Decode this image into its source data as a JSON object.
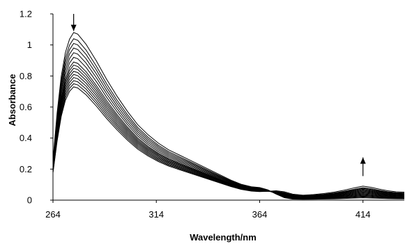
{
  "chart_data": {
    "type": "line",
    "title": "",
    "xlabel": "Wavelength/nm",
    "ylabel": "Absorbance",
    "xlim": [
      264,
      434
    ],
    "ylim": [
      0,
      1.2
    ],
    "xticks": [
      264,
      314,
      364,
      414
    ],
    "xtick_labels": [
      "264",
      "314",
      "364",
      "414"
    ],
    "yticks": [
      0,
      0.2,
      0.4,
      0.6,
      0.8,
      1.0,
      1.2
    ],
    "ytick_labels": [
      "0",
      "0.2",
      "0.4",
      "0.6",
      "0.8",
      "1",
      "1.2"
    ],
    "grid": false,
    "legend": false,
    "line_color": "#000000",
    "peak_values_at_274nm": [
      1.08,
      1.04,
      1.01,
      0.98,
      0.95,
      0.92,
      0.89,
      0.87,
      0.85,
      0.83,
      0.81,
      0.79,
      0.77,
      0.75,
      0.73
    ],
    "band_values_at_414nm": [
      0.015,
      0.02,
      0.025,
      0.03,
      0.035,
      0.04,
      0.045,
      0.05,
      0.055,
      0.06,
      0.065,
      0.07,
      0.075,
      0.08,
      0.09
    ],
    "template_x": [
      264,
      266,
      268,
      270,
      272,
      274,
      276,
      280,
      285,
      290,
      295,
      300,
      305,
      310,
      315,
      320,
      325,
      330,
      335,
      340,
      345,
      350,
      355,
      360,
      364,
      368,
      372,
      376,
      380,
      385,
      390,
      395,
      400,
      405,
      410,
      414,
      418,
      422,
      426,
      430,
      434
    ],
    "template_y": [
      0.24,
      0.52,
      0.74,
      0.88,
      0.96,
      1.0,
      0.99,
      0.93,
      0.83,
      0.72,
      0.62,
      0.53,
      0.45,
      0.39,
      0.34,
      0.3,
      0.27,
      0.24,
      0.21,
      0.18,
      0.15,
      0.12,
      0.095,
      0.08,
      0.075,
      0.07,
      0.06,
      0.045,
      0.03,
      0.025,
      0.028,
      0.033,
      0.04,
      0.05,
      0.062,
      0.07,
      0.064,
      0.055,
      0.047,
      0.042,
      0.04
    ],
    "annotations": [
      {
        "type": "arrow",
        "direction": "down",
        "x": 274,
        "from_y": 1.2,
        "to_y": 1.09
      },
      {
        "type": "arrow",
        "direction": "up",
        "x": 414,
        "from_y": 0.155,
        "to_y": 0.275
      }
    ]
  }
}
